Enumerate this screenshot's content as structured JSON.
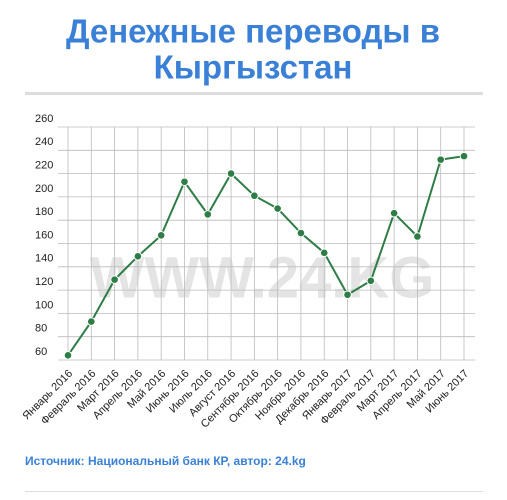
{
  "chart_data": {
    "type": "line",
    "title": [
      "Денежные переводы в",
      "Кыргызстан"
    ],
    "watermark": "WWW.24.KG",
    "source": "Источник: Национальный банк КР, автор: 24.kg",
    "categories": [
      "Январь 2016",
      "Февраль 2016",
      "Март 2016",
      "Апрель 2016",
      "Май 2016",
      "Июнь 2016",
      "Июль 2016",
      "Август 2016",
      "Сентябрь 2016",
      "Октябрь 2016",
      "Ноябрь 2016",
      "Декабрь 2016",
      "Январь 2017",
      "Февраль 2017",
      "Март 2017",
      "Апрель 2017",
      "Май 2017",
      "Июнь 2017"
    ],
    "values": [
      64,
      93,
      129,
      149,
      167,
      213,
      185,
      220,
      201,
      190,
      169,
      152,
      116,
      128,
      186,
      166,
      232,
      235
    ],
    "color": "#2e7d46",
    "ylim": [
      60,
      260
    ],
    "yticks": [
      60,
      80,
      100,
      120,
      140,
      160,
      180,
      200,
      220,
      240,
      260
    ],
    "grid": true
  }
}
